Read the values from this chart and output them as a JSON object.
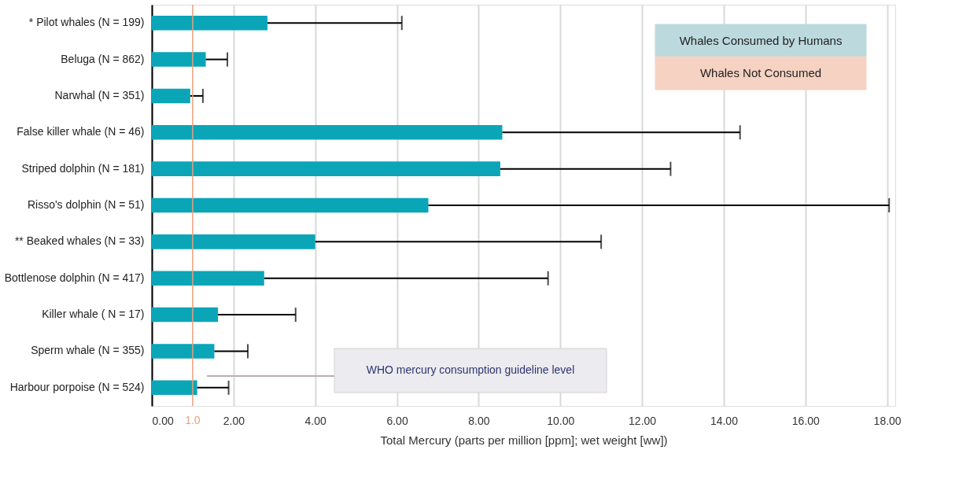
{
  "chart_data": {
    "type": "bar",
    "orientation": "horizontal",
    "xlabel": "Total Mercury (parts per million [ppm]; wet weight [ww])",
    "categories": [
      "* Pilot whales (N = 199)",
      "Beluga (N = 862)",
      "Narwhal (N = 351)",
      "False killer whale (N = 46)",
      "Striped dolphin (N = 181)",
      "Risso's dolphin (N = 51)",
      "** Beaked whales (N = 33)",
      "Bottlenose dolphin (N = 417)",
      "Killer whale ( N = 17)",
      "Sperm whale (N = 355)",
      "Harbour porpoise (N = 524)"
    ],
    "values": [
      2.83,
      1.32,
      0.94,
      8.58,
      8.53,
      6.77,
      4.0,
      2.75,
      1.62,
      1.53,
      1.11
    ],
    "color": "#0ba5b8",
    "errors": [
      [
        2.83,
        6.12
      ],
      [
        1.32,
        1.85
      ],
      [
        0.94,
        1.25
      ],
      [
        8.58,
        14.4
      ],
      [
        8.53,
        12.7
      ],
      [
        6.77,
        18.05
      ],
      [
        4.0,
        11.0
      ],
      [
        2.75,
        9.7
      ],
      [
        1.62,
        3.52
      ],
      [
        1.53,
        2.35
      ],
      [
        1.11,
        1.88
      ]
    ],
    "xlim": [
      0,
      18.2
    ],
    "xticks": [
      {
        "value": 0,
        "label": "0.00"
      },
      {
        "value": 2,
        "label": "2.00"
      },
      {
        "value": 4,
        "label": "4.00"
      },
      {
        "value": 6,
        "label": "6.00"
      },
      {
        "value": 8,
        "label": "8.00"
      },
      {
        "value": 10,
        "label": "10.00"
      },
      {
        "value": 12,
        "label": "12.00"
      },
      {
        "value": 14,
        "label": "14.00"
      },
      {
        "value": 16,
        "label": "16.00"
      },
      {
        "value": 18,
        "label": "18.00"
      }
    ],
    "grid": "x",
    "ref_lines": [
      {
        "axis": "x",
        "value": 1.0,
        "label": "1.0",
        "color": "#e8a07e"
      }
    ],
    "annotations": [
      "Whales Consumed by Humans",
      "Whales Not Consumed",
      "WHO mercury consumption guideline level"
    ]
  }
}
